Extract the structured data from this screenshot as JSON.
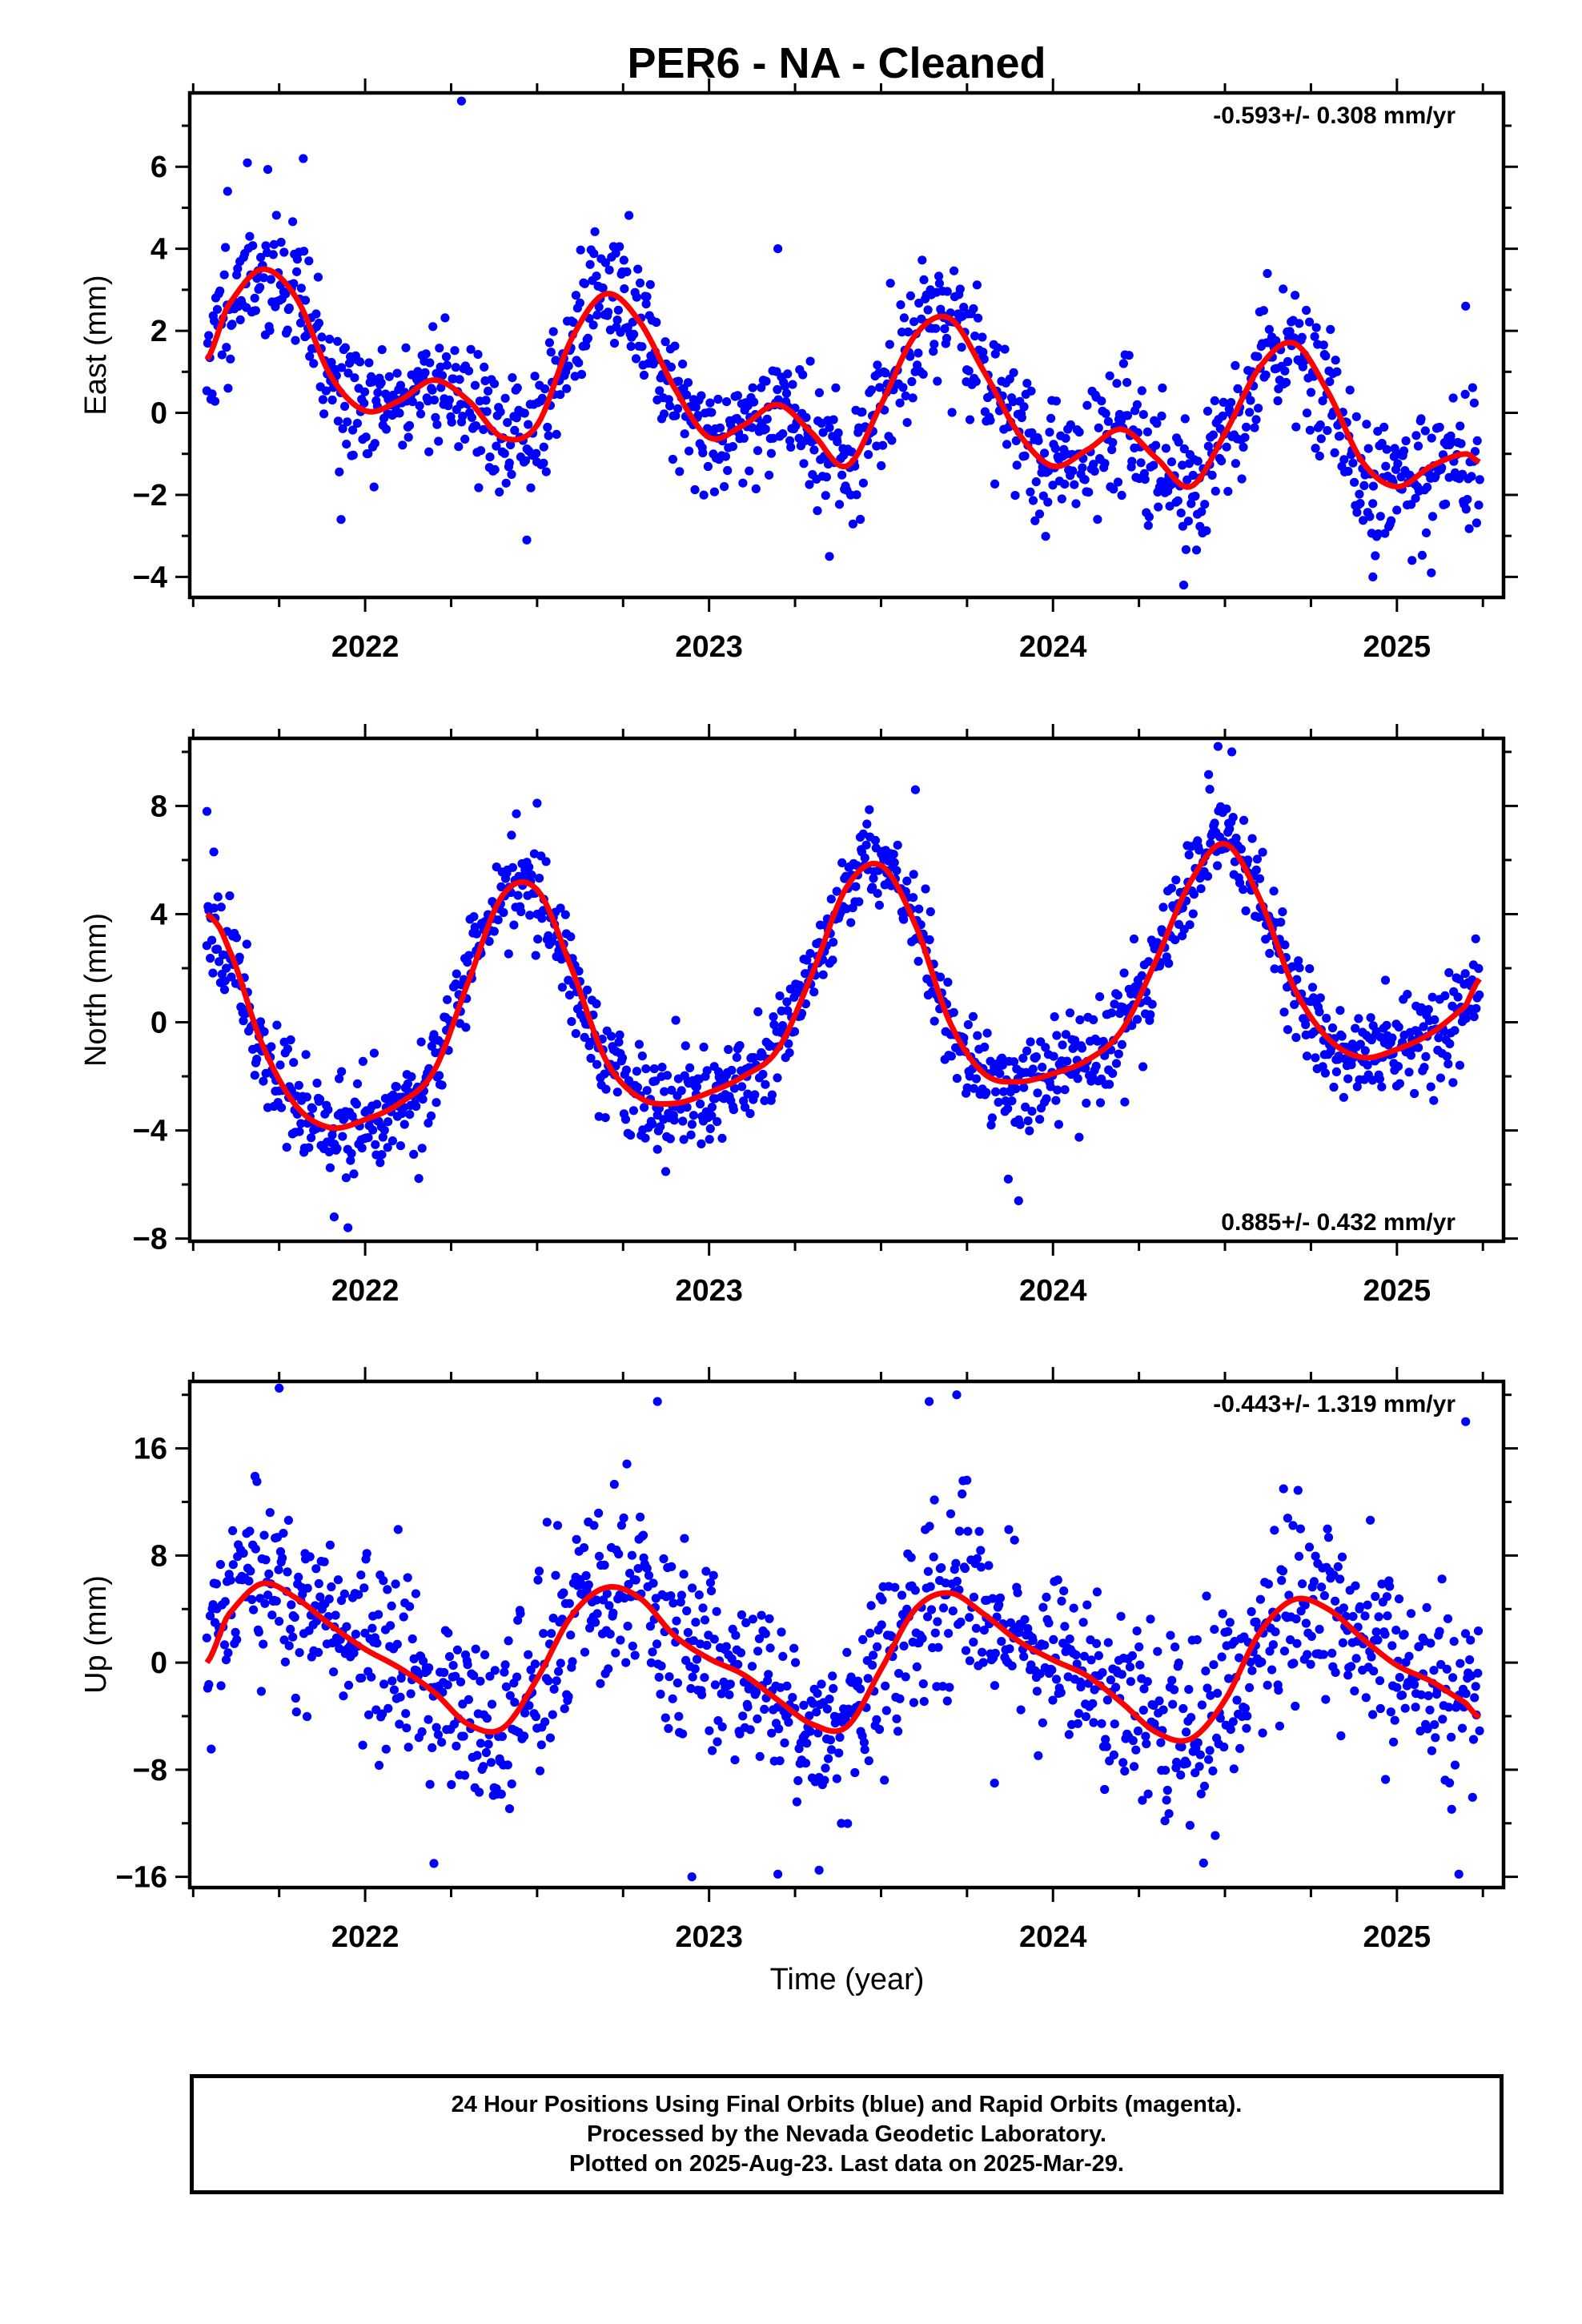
{
  "title": "PER6  - NA - Cleaned",
  "xlabel": "Time (year)",
  "footer": {
    "line1": "24 Hour Positions Using Final Orbits (blue) and Rapid Orbits (magenta).",
    "line2": "Processed by the Nevada Geodetic Laboratory.",
    "line3": "Plotted on 2025-Aug-23. Last data on 2025-Mar-29."
  },
  "colors": {
    "points": "#0000ff",
    "fit": "#ff0000"
  },
  "chart_data": [
    {
      "type": "scatter",
      "ylabel": "East (mm)",
      "rate": "-0.593+/- 0.308 mm/yr",
      "rate_position": "top-right",
      "xlim": [
        2021.49,
        2025.31
      ],
      "ylim": [
        -4.5,
        7.8
      ],
      "x_ticks": [
        2022,
        2023,
        2024,
        2025
      ],
      "y_ticks": [
        -4,
        -2,
        0,
        2,
        4,
        6
      ],
      "data_range": [
        2021.54,
        2025.24
      ],
      "fit": {
        "name": "fit",
        "x": [
          2021.54,
          2021.6,
          2021.7,
          2021.8,
          2021.9,
          2022.0,
          2022.1,
          2022.2,
          2022.3,
          2022.4,
          2022.5,
          2022.6,
          2022.7,
          2022.8,
          2022.9,
          2023.0,
          2023.1,
          2023.2,
          2023.3,
          2023.4,
          2023.5,
          2023.6,
          2023.7,
          2023.8,
          2023.9,
          2024.0,
          2024.1,
          2024.2,
          2024.3,
          2024.4,
          2024.5,
          2024.6,
          2024.7,
          2024.8,
          2024.9,
          2025.0,
          2025.1,
          2025.2,
          2025.24
        ],
        "y": [
          1.3,
          2.6,
          3.5,
          2.8,
          0.9,
          0.05,
          0.3,
          0.8,
          0.3,
          -0.6,
          -0.3,
          1.8,
          2.9,
          2.2,
          0.6,
          -0.6,
          -0.3,
          0.2,
          -0.5,
          -1.3,
          0.2,
          1.9,
          2.3,
          1.0,
          -0.5,
          -1.3,
          -0.9,
          -0.4,
          -1.1,
          -1.8,
          -0.5,
          1.1,
          1.7,
          0.5,
          -1.2,
          -1.8,
          -1.3,
          -1.0,
          -1.2
        ]
      },
      "scatter": {
        "n": 1250,
        "noise_sd": 0.8,
        "seed": 11,
        "outliers": [
          [
            2021.82,
            6.2
          ],
          [
            2022.28,
            7.6
          ],
          [
            2021.6,
            5.4
          ],
          [
            2021.93,
            -2.6
          ],
          [
            2023.2,
            4.0
          ],
          [
            2024.38,
            -4.2
          ],
          [
            2022.47,
            -3.1
          ],
          [
            2023.35,
            -3.5
          ],
          [
            2024.93,
            -4.0
          ],
          [
            2025.1,
            -3.9
          ],
          [
            2025.2,
            2.6
          ]
        ]
      }
    },
    {
      "type": "scatter",
      "ylabel": "North (mm)",
      "rate": "0.885+/- 0.432 mm/yr",
      "rate_position": "bottom-right",
      "xlim": [
        2021.49,
        2025.31
      ],
      "ylim": [
        -8.1,
        10.5
      ],
      "x_ticks": [
        2022,
        2023,
        2024,
        2025
      ],
      "y_ticks": [
        -8,
        -4,
        0,
        4,
        8
      ],
      "data_range": [
        2021.54,
        2025.24
      ],
      "fit": {
        "name": "fit",
        "x": [
          2021.54,
          2021.6,
          2021.7,
          2021.8,
          2021.9,
          2022.0,
          2022.1,
          2022.2,
          2022.3,
          2022.4,
          2022.5,
          2022.6,
          2022.7,
          2022.8,
          2022.9,
          2023.0,
          2023.1,
          2023.2,
          2023.3,
          2023.4,
          2023.5,
          2023.6,
          2023.7,
          2023.8,
          2023.9,
          2024.0,
          2024.1,
          2024.2,
          2024.3,
          2024.4,
          2024.5,
          2024.6,
          2024.7,
          2024.8,
          2024.9,
          2025.0,
          2025.1,
          2025.2,
          2025.24
        ],
        "y": [
          4.0,
          2.8,
          -0.8,
          -3.1,
          -3.9,
          -3.6,
          -3.0,
          -1.8,
          1.5,
          4.7,
          4.9,
          2.0,
          -1.4,
          -2.8,
          -3.0,
          -2.6,
          -2.0,
          -1.0,
          1.8,
          5.0,
          5.8,
          3.6,
          0.0,
          -1.9,
          -2.2,
          -1.9,
          -1.4,
          -0.3,
          2.3,
          5.2,
          6.6,
          4.6,
          1.3,
          -0.6,
          -1.3,
          -1.0,
          -0.4,
          0.6,
          1.6
        ]
      },
      "scatter": {
        "n": 1250,
        "noise_sd": 0.9,
        "seed": 23,
        "outliers": [
          [
            2021.54,
            7.8
          ],
          [
            2021.56,
            6.3
          ],
          [
            2022.5,
            8.1
          ],
          [
            2023.6,
            8.6
          ],
          [
            2024.48,
            10.2
          ],
          [
            2024.52,
            10.0
          ],
          [
            2021.95,
            -7.6
          ],
          [
            2021.91,
            -7.2
          ],
          [
            2023.9,
            -6.6
          ],
          [
            2023.87,
            -5.8
          ],
          [
            2022.85,
            -4.7
          ]
        ]
      }
    },
    {
      "type": "scatter",
      "ylabel": "Up (mm)",
      "rate": "-0.443+/- 1.319 mm/yr",
      "rate_position": "top-right",
      "xlim": [
        2021.49,
        2025.31
      ],
      "ylim": [
        -16.8,
        21
      ],
      "x_ticks": [
        2022,
        2023,
        2024,
        2025
      ],
      "y_ticks": [
        -16,
        -8,
        0,
        8,
        16
      ],
      "data_range": [
        2021.54,
        2025.24
      ],
      "fit": {
        "name": "fit",
        "x": [
          2021.54,
          2021.6,
          2021.7,
          2021.8,
          2021.9,
          2022.0,
          2022.1,
          2022.2,
          2022.3,
          2022.4,
          2022.5,
          2022.6,
          2022.7,
          2022.8,
          2022.9,
          2023.0,
          2023.1,
          2023.2,
          2023.3,
          2023.4,
          2023.5,
          2023.6,
          2023.7,
          2023.8,
          2023.9,
          2024.0,
          2024.1,
          2024.2,
          2024.3,
          2024.4,
          2024.5,
          2024.6,
          2024.7,
          2024.8,
          2024.9,
          2025.0,
          2025.1,
          2025.2,
          2025.24
        ],
        "y": [
          0.0,
          3.5,
          5.9,
          4.8,
          2.8,
          1.0,
          -0.4,
          -2.2,
          -4.6,
          -4.9,
          -1.2,
          3.5,
          5.6,
          4.8,
          2.0,
          0.3,
          -0.9,
          -2.8,
          -4.6,
          -4.8,
          -0.5,
          4.0,
          5.2,
          3.6,
          1.6,
          0.2,
          -1.0,
          -3.0,
          -5.2,
          -5.7,
          -2.8,
          2.2,
          4.7,
          4.0,
          1.8,
          -0.2,
          -1.4,
          -3.0,
          -4.1
        ]
      },
      "scatter": {
        "n": 1250,
        "noise_sd": 3.4,
        "seed": 37,
        "outliers": [
          [
            2021.75,
            20.5
          ],
          [
            2022.85,
            19.5
          ],
          [
            2023.72,
            20.0
          ],
          [
            2023.64,
            19.5
          ],
          [
            2025.2,
            18.0
          ],
          [
            2022.95,
            -16.0
          ],
          [
            2023.2,
            -15.8
          ],
          [
            2023.32,
            -15.5
          ],
          [
            2025.18,
            -15.8
          ],
          [
            2022.2,
            -15.0
          ],
          [
            2023.83,
            -9.0
          ]
        ]
      }
    }
  ]
}
